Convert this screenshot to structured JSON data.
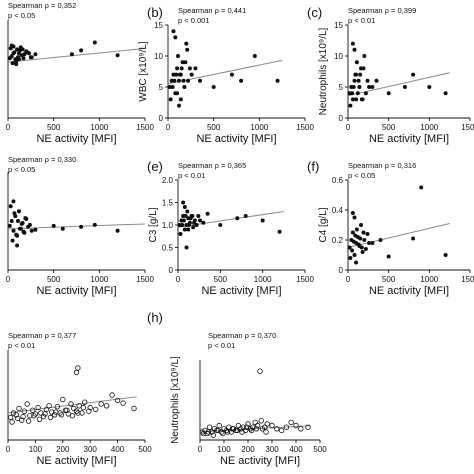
{
  "figure": {
    "labels": {
      "b": "(b)",
      "c": "(c)",
      "e": "(e)",
      "f": "(f)",
      "h": "(h)"
    }
  },
  "chart_data": [
    {
      "id": "a",
      "type": "scatter",
      "panel_label": "",
      "xlabel": "NE activity [MFI]",
      "ylabel": "",
      "xlim": [
        0,
        1500
      ],
      "ylim": [
        0,
        100
      ],
      "xticks": [
        "0",
        "500",
        "1000",
        "1500"
      ],
      "yticks": [],
      "stat_line1": "Spearman ρ = 0,352",
      "stat_line2": "p < 0.05",
      "marker": "filled",
      "regression": [
        [
          0,
          57
        ],
        [
          1500,
          71
        ]
      ],
      "x": [
        40,
        60,
        80,
        100,
        120,
        150,
        200,
        250,
        300,
        30,
        70,
        90,
        110,
        130,
        170,
        210,
        50,
        20,
        140,
        180,
        230,
        700,
        800,
        950,
        1200,
        60,
        90,
        120,
        160,
        40,
        260
      ],
      "y": [
        63,
        66,
        60,
        70,
        66,
        64,
        68,
        62,
        65,
        71,
        67,
        58,
        62,
        69,
        61,
        67,
        56,
        61,
        72,
        65,
        66,
        65,
        69,
        77,
        64,
        73,
        55,
        60,
        70,
        74,
        62
      ]
    },
    {
      "id": "b",
      "type": "scatter",
      "panel_label": "(b)",
      "xlabel": "NE activity [MFI]",
      "ylabel": "WBC [x10⁹/L]",
      "xlim": [
        0,
        1500
      ],
      "ylim": [
        0,
        15
      ],
      "xticks": [
        "0",
        "500",
        "1000",
        "1500"
      ],
      "yticks": [
        "0",
        "5",
        "10",
        "15"
      ],
      "stat_line1": "Spearman ρ = 0,441",
      "stat_line2": "p < 0.001",
      "marker": "filled",
      "regression": [
        [
          0,
          5.5
        ],
        [
          1250,
          9.3
        ]
      ],
      "x": [
        20,
        40,
        60,
        80,
        100,
        120,
        140,
        160,
        180,
        200,
        220,
        240,
        30,
        50,
        70,
        90,
        110,
        130,
        150,
        170,
        190,
        210,
        260,
        300,
        350,
        500,
        700,
        800,
        950,
        1200,
        60,
        80,
        100,
        120,
        140
      ],
      "y": [
        5,
        6,
        7,
        4,
        8,
        6,
        7,
        9,
        5,
        12,
        6,
        8,
        3,
        5,
        6,
        7,
        10,
        7,
        8,
        6,
        9,
        11,
        7,
        8,
        6,
        5,
        7,
        6,
        10,
        6,
        14,
        13,
        4,
        2,
        3
      ]
    },
    {
      "id": "c",
      "type": "scatter",
      "panel_label": "(c)",
      "xlabel": "NE activity [MFI]",
      "ylabel": "Neutrophils [x10⁹/L]",
      "xlim": [
        0,
        1500
      ],
      "ylim": [
        0,
        15
      ],
      "xticks": [
        "0",
        "500",
        "1000",
        "1500"
      ],
      "yticks": [
        "0",
        "5",
        "10",
        "15"
      ],
      "stat_line1": "Spearman ρ = 0,399",
      "stat_line2": "p < 0.01",
      "marker": "filled",
      "regression": [
        [
          0,
          3.6
        ],
        [
          1250,
          7.3
        ]
      ],
      "x": [
        20,
        40,
        60,
        80,
        100,
        120,
        140,
        160,
        180,
        200,
        220,
        240,
        260,
        30,
        50,
        70,
        90,
        110,
        130,
        150,
        170,
        190,
        300,
        350,
        500,
        700,
        800,
        1000,
        1200,
        60,
        80,
        100
      ],
      "y": [
        4,
        5,
        3,
        6,
        7,
        4,
        5,
        8,
        3,
        10,
        4,
        6,
        5,
        2,
        4,
        5,
        7,
        9,
        6,
        7,
        3,
        8,
        5,
        6,
        4,
        5,
        7,
        5,
        4,
        12,
        11,
        3
      ]
    },
    {
      "id": "d",
      "type": "scatter",
      "panel_label": "",
      "xlabel": "NE activity [MFI]",
      "ylabel": "",
      "xlim": [
        0,
        1500
      ],
      "ylim": [
        0,
        100
      ],
      "xticks": [
        "0",
        "500",
        "1000",
        "1500"
      ],
      "yticks": [],
      "stat_line1": "Spearman ρ = 0,330",
      "stat_line2": "p < 0.05",
      "marker": "filled",
      "regression": [
        [
          0,
          42
        ],
        [
          1500,
          47
        ]
      ],
      "x": [
        20,
        40,
        60,
        80,
        100,
        120,
        140,
        160,
        180,
        200,
        220,
        240,
        260,
        30,
        50,
        70,
        90,
        110,
        130,
        150,
        170,
        190,
        300,
        500,
        600,
        800,
        950,
        1200,
        60,
        100
      ],
      "y": [
        45,
        50,
        40,
        55,
        35,
        60,
        42,
        48,
        38,
        52,
        44,
        46,
        40,
        65,
        30,
        58,
        36,
        50,
        42,
        47,
        39,
        53,
        41,
        45,
        42,
        44,
        46,
        40,
        70,
        25
      ]
    },
    {
      "id": "e",
      "type": "scatter",
      "panel_label": "(e)",
      "xlabel": "NE activity [MFI]",
      "ylabel": "C3 [g/L]",
      "xlim": [
        0,
        1500
      ],
      "ylim": [
        0,
        2.0
      ],
      "xticks": [
        "0",
        "500",
        "1000",
        "1500"
      ],
      "yticks": [
        "0",
        "0.5",
        "1.0",
        "1.5",
        "2.0"
      ],
      "stat_line1": "Spearman ρ = 0,365",
      "stat_line2": "p < 0.01",
      "marker": "filled",
      "regression": [
        [
          0,
          0.95
        ],
        [
          1250,
          1.3
        ]
      ],
      "x": [
        20,
        40,
        60,
        80,
        100,
        120,
        140,
        160,
        180,
        200,
        220,
        240,
        260,
        300,
        30,
        50,
        70,
        90,
        110,
        130,
        150,
        170,
        190,
        350,
        500,
        700,
        800,
        1000,
        1200,
        60,
        80,
        100,
        120
      ],
      "y": [
        1.0,
        1.1,
        1.2,
        0.9,
        1.0,
        1.15,
        1.05,
        1.2,
        0.95,
        1.1,
        1.0,
        1.2,
        1.1,
        1.05,
        0.8,
        1.0,
        1.1,
        1.2,
        1.3,
        1.0,
        1.15,
        1.2,
        1.05,
        1.25,
        1.0,
        1.15,
        1.2,
        1.1,
        0.85,
        1.5,
        1.4,
        0.5,
        0.9
      ]
    },
    {
      "id": "f",
      "type": "scatter",
      "panel_label": "(f)",
      "xlabel": "NE activity [MFI]",
      "ylabel": "C4 [g/L]",
      "xlim": [
        0,
        1500
      ],
      "ylim": [
        0,
        0.6
      ],
      "xticks": [
        "0",
        "500",
        "1000",
        "1500"
      ],
      "yticks": [
        "0",
        "0.2",
        "0.4",
        "0.6"
      ],
      "stat_line1": "Spearman ρ = 0,316",
      "stat_line2": "p < 0.05",
      "marker": "filled",
      "regression": [
        [
          0,
          0.15
        ],
        [
          1250,
          0.31
        ]
      ],
      "x": [
        20,
        40,
        60,
        80,
        100,
        120,
        140,
        160,
        180,
        200,
        220,
        240,
        260,
        30,
        50,
        70,
        90,
        110,
        130,
        150,
        170,
        190,
        300,
        400,
        500,
        800,
        900,
        1200,
        60,
        80,
        100
      ],
      "y": [
        0.15,
        0.2,
        0.25,
        0.1,
        0.18,
        0.22,
        0.16,
        0.3,
        0.12,
        0.2,
        0.14,
        0.24,
        0.18,
        0.08,
        0.13,
        0.19,
        0.23,
        0.27,
        0.17,
        0.21,
        0.15,
        0.25,
        0.18,
        0.2,
        0.09,
        0.21,
        0.55,
        0.1,
        0.38,
        0.35,
        0.05
      ]
    },
    {
      "id": "g",
      "type": "scatter",
      "panel_label": "",
      "xlabel": "NE activity [MFI]",
      "ylabel": "",
      "xlim": [
        0,
        500
      ],
      "ylim": [
        0,
        100
      ],
      "xticks": [
        "0",
        "100",
        "200",
        "300",
        "400",
        "500"
      ],
      "yticks": [],
      "stat_line1": "Spearman ρ = 0,377",
      "stat_line2": "p < 0.01",
      "marker": "open",
      "regression": [
        [
          0,
          30
        ],
        [
          470,
          48
        ]
      ],
      "x": [
        10,
        20,
        30,
        40,
        50,
        60,
        70,
        80,
        90,
        100,
        110,
        120,
        130,
        140,
        150,
        160,
        170,
        180,
        190,
        200,
        210,
        220,
        230,
        240,
        250,
        260,
        270,
        280,
        300,
        320,
        340,
        360,
        380,
        400,
        420,
        460,
        15,
        35,
        55,
        75,
        95,
        115,
        135,
        155,
        175,
        195,
        215,
        235,
        255,
        275,
        295,
        255,
        250
      ],
      "y": [
        25,
        30,
        28,
        35,
        22,
        32,
        40,
        27,
        33,
        29,
        36,
        30,
        26,
        34,
        38,
        31,
        28,
        37,
        30,
        45,
        33,
        29,
        40,
        35,
        32,
        38,
        30,
        42,
        36,
        34,
        40,
        38,
        50,
        44,
        41,
        35,
        20,
        24,
        26,
        21,
        27,
        23,
        29,
        25,
        31,
        28,
        33,
        27,
        30,
        36,
        32,
        80,
        75
      ]
    },
    {
      "id": "h",
      "type": "scatter",
      "panel_label": "(h)",
      "xlabel": "NE activity [MFI]",
      "ylabel": "Neutrophils [x10⁹/L]",
      "xlim": [
        0,
        500
      ],
      "ylim": [
        0,
        50
      ],
      "xticks": [
        "0",
        "100",
        "200",
        "300",
        "400",
        "500"
      ],
      "yticks": [],
      "stat_line1": "Spearman ρ = 0,370",
      "stat_line2": "p < 0.01",
      "marker": "open",
      "regression": [
        [
          0,
          5.0
        ],
        [
          460,
          9.0
        ]
      ],
      "x": [
        10,
        20,
        30,
        40,
        50,
        60,
        70,
        80,
        90,
        100,
        110,
        120,
        130,
        140,
        150,
        160,
        170,
        180,
        190,
        200,
        210,
        220,
        230,
        240,
        250,
        260,
        270,
        280,
        300,
        320,
        340,
        360,
        380,
        400,
        420,
        450,
        15,
        35,
        55,
        75,
        95,
        115,
        135,
        155,
        175,
        195,
        215,
        235,
        255,
        275
      ],
      "y": [
        5,
        6,
        4,
        8,
        5,
        7,
        6,
        9,
        5,
        7,
        6,
        8,
        5,
        7,
        6,
        9,
        7,
        8,
        6,
        10,
        7,
        8,
        11,
        9,
        43,
        7,
        8,
        10,
        9,
        7,
        6,
        8,
        11,
        9,
        7,
        8,
        4,
        5,
        3,
        6,
        4,
        5,
        7,
        6,
        5,
        8,
        6,
        7,
        12,
        5
      ]
    }
  ]
}
